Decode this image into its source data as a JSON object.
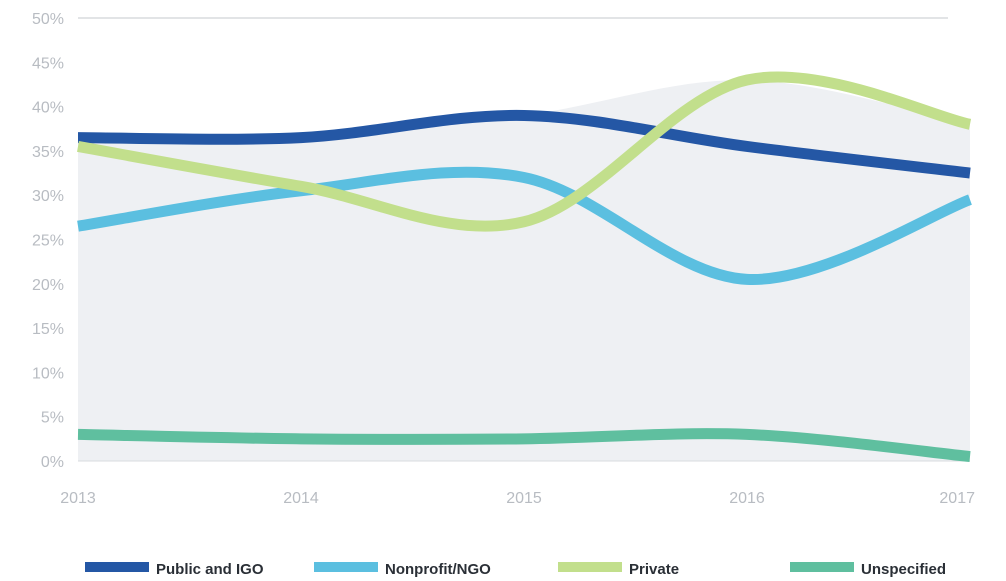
{
  "chart_data": {
    "type": "line",
    "x": [
      "2013",
      "2014",
      "2015",
      "2016",
      "2017"
    ],
    "ylim": [
      0,
      50
    ],
    "yticks": [
      "0%",
      "5%",
      "10%",
      "15%",
      "20%",
      "25%",
      "30%",
      "35%",
      "40%",
      "45%",
      "50%"
    ],
    "grid": false,
    "legend_position": "bottom",
    "series": [
      {
        "name": "Public and IGO",
        "color": "#2457a5",
        "values": [
          36.5,
          36.5,
          39.0,
          35.5,
          32.5
        ]
      },
      {
        "name": "Nonprofit/NGO",
        "color": "#5bbfe0",
        "values": [
          26.5,
          30.5,
          32.0,
          20.5,
          29.5
        ]
      },
      {
        "name": "Private",
        "color": "#c2df8c",
        "values": [
          35.5,
          31.0,
          27.0,
          43.0,
          38.0
        ]
      },
      {
        "name": "Unspecified",
        "color": "#5fbf9f",
        "values": [
          3.0,
          2.5,
          2.5,
          3.0,
          0.5
        ]
      }
    ]
  }
}
